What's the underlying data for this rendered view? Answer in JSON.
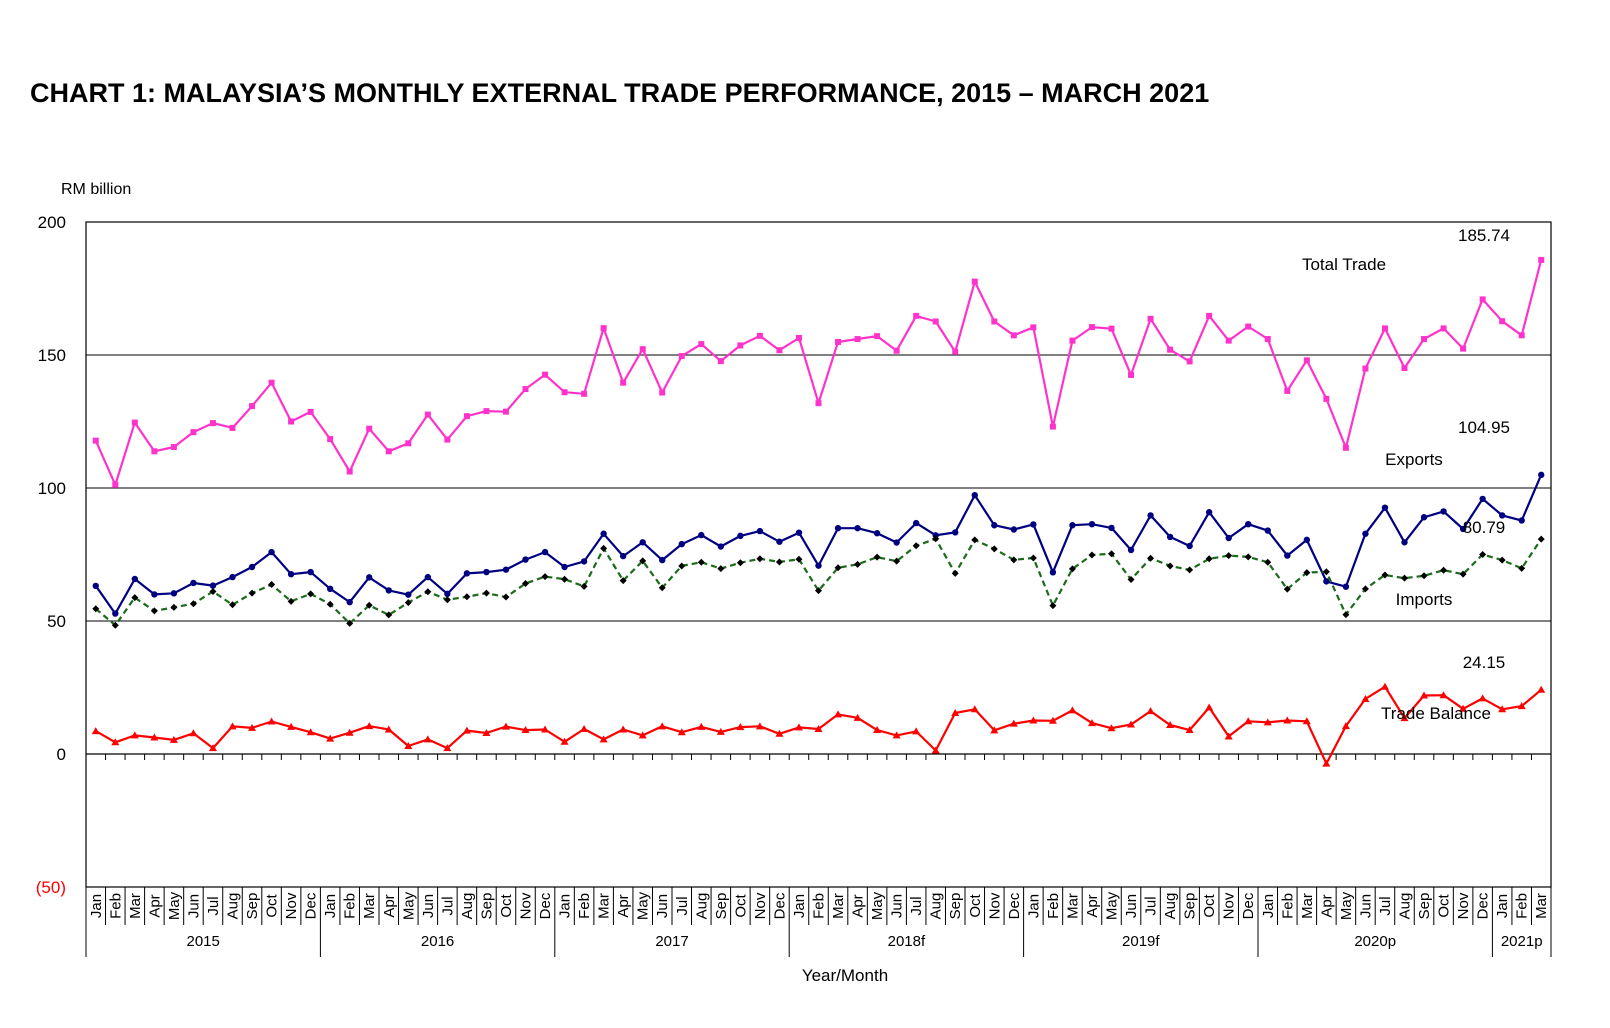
{
  "title": "CHART 1: MALAYSIA’S MONTHLY EXTERNAL TRADE PERFORMANCE, 2015 – MARCH 2021",
  "ylabel": "RM billion",
  "xlabel": "Year/Month",
  "chart_data": {
    "type": "line",
    "title": "CHART 1: MALAYSIA’S MONTHLY EXTERNAL TRADE PERFORMANCE, 2015 – MARCH 2021",
    "xlabel": "Year/Month",
    "ylabel": "RM billion",
    "ylim": [
      -50,
      200
    ],
    "yticks": [
      {
        "value": 200,
        "label": "200"
      },
      {
        "value": 150,
        "label": "150"
      },
      {
        "value": 100,
        "label": "100"
      },
      {
        "value": 50,
        "label": "50"
      },
      {
        "value": 0,
        "label": "0"
      },
      {
        "value": -50,
        "label": "(50)"
      }
    ],
    "grid": "horizontal at 50, 100, 150",
    "months": [
      "Jan",
      "Feb",
      "Mar",
      "Apr",
      "May",
      "Jun",
      "Jul",
      "Aug",
      "Sep",
      "Oct",
      "Nov",
      "Dec",
      "Jan",
      "Feb",
      "Mar",
      "Apr",
      "May",
      "Jun",
      "Jul",
      "Aug",
      "Sep",
      "Oct",
      "Nov",
      "Dec",
      "Jan",
      "Feb",
      "Mar",
      "Apr",
      "May",
      "Jun",
      "Jul",
      "Aug",
      "Sep",
      "Oct",
      "Nov",
      "Dec",
      "Jan",
      "Feb",
      "Mar",
      "Apr",
      "May",
      "Jun",
      "Jul",
      "Aug",
      "Sep",
      "Oct",
      "Nov",
      "Dec",
      "Jan",
      "Feb",
      "Mar",
      "Apr",
      "May",
      "Jun",
      "Jul",
      "Aug",
      "Sep",
      "Oct",
      "Nov",
      "Dec",
      "Jan",
      "Feb",
      "Mar",
      "Apr",
      "May",
      "Jun",
      "Jul",
      "Aug",
      "Sep",
      "Oct",
      "Nov",
      "Dec",
      "Jan",
      "Feb",
      "Mar"
    ],
    "years": [
      {
        "label": "2015",
        "months": 12
      },
      {
        "label": "2016",
        "months": 12
      },
      {
        "label": "2017",
        "months": 12
      },
      {
        "label": "2018f",
        "months": 12
      },
      {
        "label": "2019f",
        "months": 12
      },
      {
        "label": "2020p",
        "months": 12
      },
      {
        "label": "2021p",
        "months": 3
      }
    ],
    "series": [
      {
        "name": "Total Trade",
        "color": "#ff33cc",
        "marker": "square",
        "dash": false,
        "end_label": "185.74",
        "values": [
          117.8,
          101.2,
          124.6,
          113.8,
          115.4,
          121.0,
          124.4,
          122.6,
          130.8,
          139.6,
          125.0,
          128.6,
          118.4,
          106.2,
          122.3,
          113.8,
          116.8,
          127.6,
          118.2,
          127.0,
          128.9,
          128.7,
          137.2,
          142.6,
          136.0,
          135.4,
          160.1,
          139.6,
          152.2,
          135.9,
          149.6,
          154.1,
          147.7,
          153.6,
          157.2,
          151.8,
          156.4,
          131.9,
          154.9,
          156.0,
          157.1,
          151.6,
          164.7,
          162.6,
          151.2,
          177.6,
          162.6,
          157.4,
          160.4,
          123.1,
          155.4,
          160.5,
          159.9,
          142.5,
          163.6,
          152.0,
          147.6,
          164.7,
          155.4,
          160.7,
          156.0,
          136.5,
          148.0,
          133.5,
          115.1,
          144.9,
          160.0,
          145.1,
          156.0,
          160.0,
          152.4,
          170.9,
          162.7,
          157.4,
          185.74
        ]
      },
      {
        "name": "Exports",
        "color": "#000080",
        "marker": "circle",
        "dash": false,
        "end_label": "104.95",
        "values": [
          63.2,
          52.8,
          65.8,
          60.0,
          60.4,
          64.3,
          63.3,
          66.5,
          70.3,
          75.9,
          67.6,
          68.4,
          62.1,
          57.1,
          66.4,
          61.5,
          59.9,
          66.5,
          60.2,
          67.9,
          68.4,
          69.3,
          73.1,
          75.9,
          70.3,
          72.4,
          82.8,
          74.4,
          79.6,
          72.9,
          78.9,
          82.3,
          78.0,
          82.0,
          83.8,
          79.8,
          83.2,
          70.8,
          84.9,
          84.9,
          83.0,
          79.5,
          86.8,
          82.2,
          83.3,
          97.3,
          86.0,
          84.4,
          86.3,
          68.3,
          86.0,
          86.4,
          85.0,
          76.7,
          89.7,
          81.6,
          78.2,
          90.9,
          81.2,
          86.4,
          84.0,
          74.6,
          80.5,
          64.9,
          62.9,
          82.8,
          92.6,
          79.6,
          89.0,
          91.2,
          84.6,
          95.9,
          89.7,
          87.8,
          104.95
        ]
      },
      {
        "name": "Imports",
        "color": "#1a6b1a",
        "marker": "diamond",
        "dash": true,
        "end_label": "80.79",
        "values": [
          54.6,
          48.4,
          58.8,
          53.8,
          55.1,
          56.5,
          61.1,
          56.1,
          60.5,
          63.7,
          57.4,
          60.2,
          56.3,
          49.1,
          55.9,
          52.3,
          56.9,
          61.0,
          58.0,
          59.1,
          60.5,
          59.0,
          64.1,
          66.7,
          65.7,
          63.0,
          77.3,
          65.2,
          72.6,
          62.5,
          70.7,
          72.1,
          69.7,
          71.9,
          73.4,
          72.2,
          73.2,
          61.4,
          70.0,
          71.3,
          74.0,
          72.5,
          78.3,
          80.9,
          67.9,
          80.5,
          77.1,
          73.0,
          73.7,
          55.8,
          69.6,
          74.8,
          75.3,
          65.6,
          73.6,
          70.7,
          69.2,
          73.4,
          74.6,
          74.1,
          72.1,
          62.0,
          68.2,
          68.5,
          52.4,
          62.1,
          67.3,
          66.1,
          67.0,
          69.1,
          67.6,
          75.0,
          72.9,
          69.8,
          80.79
        ]
      },
      {
        "name": "Trade Balance",
        "color": "#ff0000",
        "marker": "triangle",
        "dash": false,
        "end_label": "24.15",
        "values": [
          8.6,
          4.4,
          7.0,
          6.2,
          5.3,
          7.8,
          2.2,
          10.4,
          9.8,
          12.2,
          10.2,
          8.2,
          5.8,
          8.0,
          10.5,
          9.2,
          3.0,
          5.5,
          2.2,
          8.8,
          7.9,
          10.3,
          9.0,
          9.2,
          4.6,
          9.4,
          5.5,
          9.2,
          7.0,
          10.4,
          8.2,
          10.2,
          8.3,
          10.1,
          10.4,
          7.6,
          10.0,
          9.4,
          14.9,
          13.6,
          9.0,
          7.0,
          8.5,
          1.3,
          15.4,
          16.8,
          8.9,
          11.4,
          12.6,
          12.5,
          16.4,
          11.6,
          9.7,
          11.1,
          16.1,
          10.9,
          9.0,
          17.5,
          6.6,
          12.3,
          11.9,
          12.6,
          12.3,
          -3.6,
          10.5,
          20.7,
          25.3,
          13.5,
          22.0,
          22.1,
          17.0,
          20.9,
          16.8,
          18.0,
          24.15
        ]
      }
    ]
  }
}
